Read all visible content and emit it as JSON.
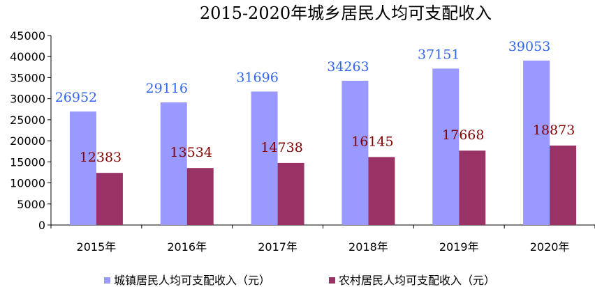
{
  "chart_data": {
    "type": "bar",
    "title": "2015-2020年城乡居民人均可支配收入",
    "categories": [
      "2015年",
      "2016年",
      "2017年",
      "2018年",
      "2019年",
      "2020年"
    ],
    "series": [
      {
        "name": "城镇居民人均可支配收入（元）",
        "values": [
          26952,
          29116,
          31696,
          34263,
          37151,
          39053
        ],
        "color": "#9999ff",
        "label_color": "#3366ee"
      },
      {
        "name": "农村居民人均可支配收入（元）",
        "values": [
          12383,
          13534,
          14738,
          16145,
          17668,
          18873
        ],
        "color": "#993366",
        "label_color": "#800000"
      }
    ],
    "ylim": [
      0,
      45000
    ],
    "yticks": [
      0,
      5000,
      10000,
      15000,
      20000,
      25000,
      30000,
      35000,
      40000,
      45000
    ],
    "xlabel": "",
    "ylabel": "",
    "grid": false,
    "legend_position": "bottom"
  }
}
